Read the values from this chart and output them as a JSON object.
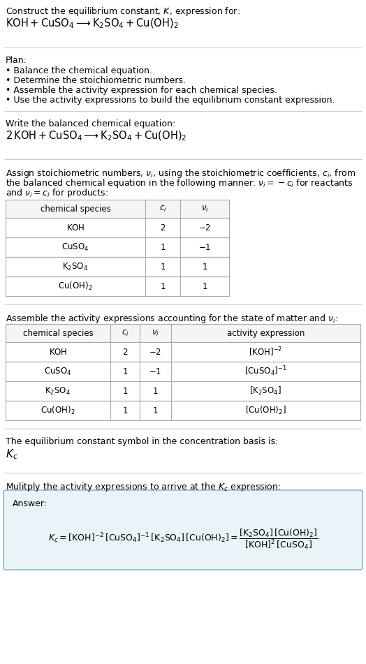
{
  "bg_color": "#ffffff",
  "text_color": "#000000",
  "table_header_bg": "#f5f5f5",
  "table_border": "#aaaaaa",
  "answer_bg": "#e8f4f8",
  "answer_border": "#88bbcc",
  "separator_color": "#cccccc",
  "title_line1": "Construct the equilibrium constant, $K$, expression for:",
  "title_eq": "$\\mathrm{KOH + CuSO_4 \\longrightarrow K_2SO_4 + Cu(OH)_2}$",
  "plan_header": "Plan:",
  "plan_items": [
    "• Balance the chemical equation.",
    "• Determine the stoichiometric numbers.",
    "• Assemble the activity expression for each chemical species.",
    "• Use the activity expressions to build the equilibrium constant expression."
  ],
  "balanced_header": "Write the balanced chemical equation:",
  "balanced_eq": "$\\mathrm{2\\,KOH + CuSO_4 \\longrightarrow K_2SO_4 + Cu(OH)_2}$",
  "stoich_intro": [
    "Assign stoichiometric numbers, $\\nu_i$, using the stoichiometric coefficients, $c_i$, from",
    "the balanced chemical equation in the following manner: $\\nu_i = -c_i$ for reactants",
    "and $\\nu_i = c_i$ for products:"
  ],
  "table1_col_species_label": "chemical species",
  "table1_col_ci_label": "$c_i$",
  "table1_col_vi_label": "$\\nu_i$",
  "table1_rows": [
    [
      "$\\mathrm{KOH}$",
      "2",
      "$-2$"
    ],
    [
      "$\\mathrm{CuSO_4}$",
      "1",
      "$-1$"
    ],
    [
      "$\\mathrm{K_2SO_4}$",
      "1",
      "$1$"
    ],
    [
      "$\\mathrm{Cu(OH)_2}$",
      "1",
      "$1$"
    ]
  ],
  "activity_intro": "Assemble the activity expressions accounting for the state of matter and $\\nu_i$:",
  "table2_col_labels": [
    "chemical species",
    "$c_i$",
    "$\\nu_i$",
    "activity expression"
  ],
  "table2_rows": [
    [
      "$\\mathrm{KOH}$",
      "2",
      "$-2$",
      "$[\\mathrm{KOH}]^{-2}$"
    ],
    [
      "$\\mathrm{CuSO_4}$",
      "1",
      "$-1$",
      "$[\\mathrm{CuSO_4}]^{-1}$"
    ],
    [
      "$\\mathrm{K_2SO_4}$",
      "1",
      "$1$",
      "$[\\mathrm{K_2SO_4}]$"
    ],
    [
      "$\\mathrm{Cu(OH)_2}$",
      "1",
      "$1$",
      "$[\\mathrm{Cu(OH)_2}]$"
    ]
  ],
  "kc_text": "The equilibrium constant symbol in the concentration basis is:",
  "kc_symbol": "$K_c$",
  "multiply_text": "Mulitply the activity expressions to arrive at the $K_c$ expression:",
  "answer_label": "Answer:",
  "answer_eq": "$K_c = [\\mathrm{KOH}]^{-2}\\,[\\mathrm{CuSO_4}]^{-1}\\,[\\mathrm{K_2SO_4}]\\,[\\mathrm{Cu(OH)_2}] = \\dfrac{[\\mathrm{K_2SO_4}]\\,[\\mathrm{Cu(OH)_2}]}{[\\mathrm{KOH}]^2\\,[\\mathrm{CuSO_4}]}$"
}
